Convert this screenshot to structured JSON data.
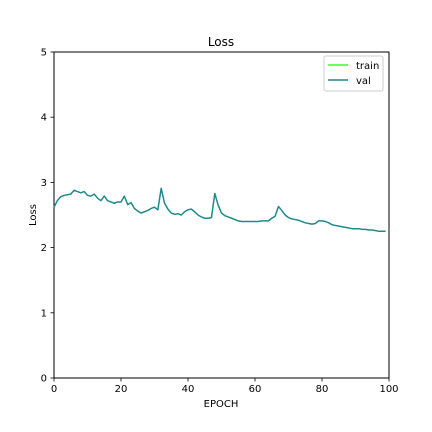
{
  "chart_data": {
    "type": "line",
    "title": "Loss",
    "xlabel": "EPOCH",
    "ylabel": "Loss",
    "xlim": [
      0,
      100
    ],
    "ylim": [
      0,
      5
    ],
    "xticks": [
      0,
      20,
      40,
      60,
      80,
      100
    ],
    "yticks": [
      0,
      1,
      2,
      3,
      4,
      5
    ],
    "grid": false,
    "legend_position": "top-right",
    "series": [
      {
        "name": "train",
        "color": "#33ff33",
        "x": [],
        "values": []
      },
      {
        "name": "val",
        "color": "#1f8a8a",
        "x": [
          0,
          1,
          2,
          3,
          4,
          5,
          6,
          7,
          8,
          9,
          10,
          11,
          12,
          13,
          14,
          15,
          16,
          17,
          18,
          19,
          20,
          21,
          22,
          23,
          24,
          25,
          26,
          27,
          28,
          29,
          30,
          31,
          32,
          33,
          34,
          35,
          36,
          37,
          38,
          39,
          40,
          41,
          42,
          43,
          44,
          45,
          46,
          47,
          48,
          49,
          50,
          51,
          52,
          53,
          54,
          55,
          56,
          57,
          58,
          59,
          60,
          61,
          62,
          63,
          64,
          65,
          66,
          67,
          68,
          69,
          70,
          71,
          72,
          73,
          74,
          75,
          76,
          77,
          78,
          79,
          80,
          81,
          82,
          83,
          84,
          85,
          86,
          87,
          88,
          89,
          90,
          91,
          92,
          93,
          94,
          95,
          96,
          97,
          98,
          99
        ],
        "values": [
          2.62,
          2.72,
          2.78,
          2.8,
          2.81,
          2.82,
          2.88,
          2.86,
          2.84,
          2.86,
          2.8,
          2.79,
          2.82,
          2.76,
          2.72,
          2.79,
          2.72,
          2.7,
          2.68,
          2.7,
          2.7,
          2.79,
          2.66,
          2.69,
          2.6,
          2.56,
          2.53,
          2.55,
          2.57,
          2.6,
          2.62,
          2.58,
          2.91,
          2.68,
          2.59,
          2.53,
          2.51,
          2.52,
          2.5,
          2.55,
          2.58,
          2.59,
          2.55,
          2.5,
          2.47,
          2.45,
          2.45,
          2.46,
          2.83,
          2.65,
          2.53,
          2.49,
          2.47,
          2.45,
          2.43,
          2.41,
          2.4,
          2.4,
          2.4,
          2.4,
          2.4,
          2.4,
          2.41,
          2.41,
          2.41,
          2.45,
          2.48,
          2.63,
          2.57,
          2.5,
          2.46,
          2.44,
          2.43,
          2.42,
          2.4,
          2.38,
          2.37,
          2.36,
          2.37,
          2.41,
          2.41,
          2.4,
          2.38,
          2.35,
          2.34,
          2.33,
          2.32,
          2.31,
          2.3,
          2.29,
          2.29,
          2.29,
          2.28,
          2.28,
          2.27,
          2.27,
          2.26,
          2.25,
          2.25,
          2.25
        ]
      }
    ]
  }
}
